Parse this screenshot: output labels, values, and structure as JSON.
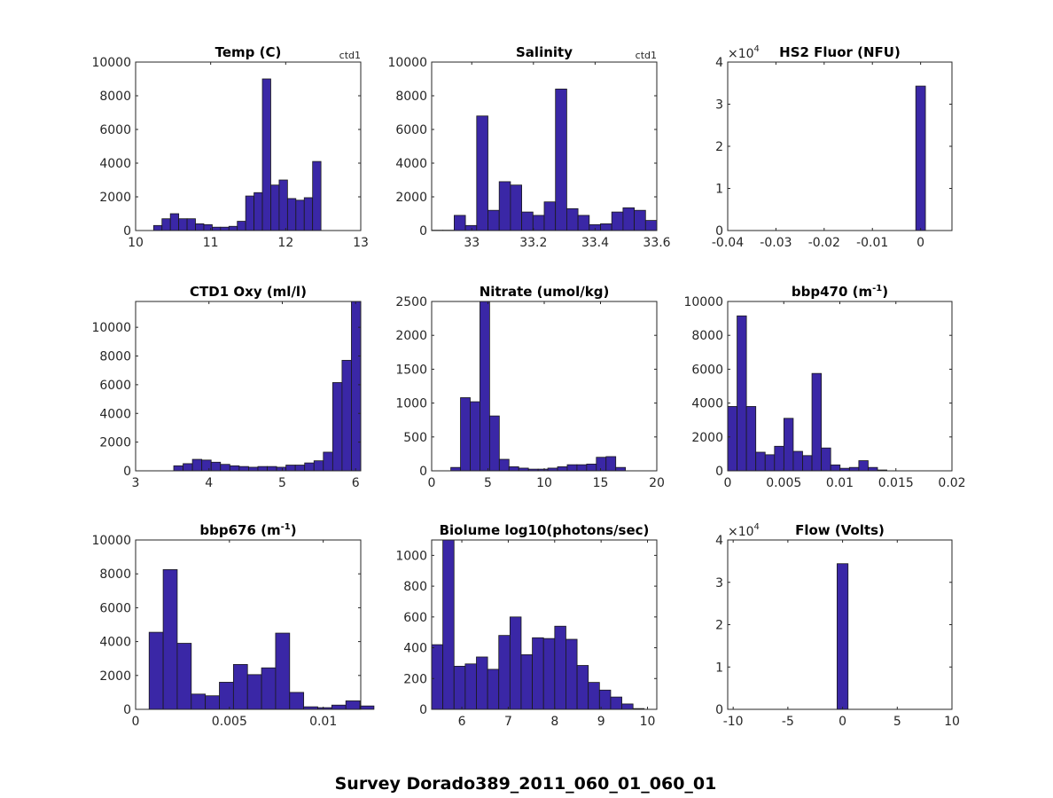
{
  "figure_title": "Survey Dorado389_2011_060_01_060_01",
  "bar_color": "#3A27A6",
  "chart_data": [
    {
      "type": "bar",
      "title": "Temp (C)",
      "title_sup": "",
      "corner_label": "ctd1",
      "exponent_label": "",
      "bin_start": 10.24,
      "bin_width": 0.1115,
      "values": [
        300,
        700,
        1000,
        700,
        700,
        400,
        350,
        200,
        200,
        250,
        550,
        2050,
        2250,
        9000,
        2700,
        3000,
        1900,
        1800,
        1950,
        4100
      ],
      "xlim": [
        10,
        13
      ],
      "ylim": [
        0,
        10000
      ],
      "xticks": [
        10,
        11,
        12,
        13
      ],
      "xtick_labels": [
        "10",
        "11",
        "12",
        "13"
      ],
      "yticks": [
        0,
        2000,
        4000,
        6000,
        8000,
        10000
      ],
      "ytick_labels": [
        "0",
        "2000",
        "4000",
        "6000",
        "8000",
        "10000"
      ]
    },
    {
      "type": "bar",
      "title": "Salinity",
      "title_sup": "",
      "corner_label": "ctd1",
      "exponent_label": "",
      "bin_start": 32.87,
      "bin_width": 0.0365,
      "values": [
        20,
        20,
        900,
        300,
        6800,
        1200,
        2900,
        2700,
        1100,
        900,
        1700,
        8400,
        1300,
        900,
        350,
        400,
        1100,
        1350,
        1200,
        600
      ],
      "xlim": [
        32.87,
        33.6
      ],
      "ylim": [
        0,
        10000
      ],
      "xticks": [
        33,
        33.2,
        33.4,
        33.6
      ],
      "xtick_labels": [
        "33",
        "33.2",
        "33.4",
        "33.6"
      ],
      "yticks": [
        0,
        2000,
        4000,
        6000,
        8000,
        10000
      ],
      "ytick_labels": [
        "0",
        "2000",
        "4000",
        "6000",
        "8000",
        "10000"
      ]
    },
    {
      "type": "bar",
      "title": "HS2 Fluor (NFU)",
      "title_sup": "",
      "corner_label": "",
      "exponent_label": "×10",
      "exponent_power": "4",
      "bin_start": -0.001,
      "bin_width": 0.002,
      "values": [
        34300
      ],
      "xlim": [
        -0.04,
        0.0065
      ],
      "ylim": [
        0,
        40000
      ],
      "xticks": [
        -0.04,
        -0.03,
        -0.02,
        -0.01,
        0
      ],
      "xtick_labels": [
        "-0.04",
        "-0.03",
        "-0.02",
        "-0.01",
        "0"
      ],
      "yticks": [
        0,
        10000,
        20000,
        30000,
        40000
      ],
      "ytick_labels": [
        "0",
        "1",
        "2",
        "3",
        "4"
      ]
    },
    {
      "type": "bar",
      "title": "CTD1 Oxy (ml/l)",
      "title_sup": "",
      "corner_label": "",
      "exponent_label": "",
      "bin_start": 3.52,
      "bin_width": 0.1275,
      "values": [
        350,
        500,
        800,
        750,
        600,
        450,
        350,
        300,
        250,
        300,
        300,
        250,
        400,
        400,
        550,
        700,
        1300,
        6150,
        7700,
        11800
      ],
      "xlim": [
        3,
        6.07
      ],
      "ylim": [
        0,
        11800
      ],
      "xticks": [
        3,
        4,
        5,
        6
      ],
      "xtick_labels": [
        "3",
        "4",
        "5",
        "6"
      ],
      "yticks": [
        0,
        2000,
        4000,
        6000,
        8000,
        10000
      ],
      "ytick_labels": [
        "0",
        "2000",
        "4000",
        "6000",
        "8000",
        "10000"
      ]
    },
    {
      "type": "bar",
      "title": "Nitrate (umol/kg)",
      "title_sup": "",
      "corner_label": "",
      "exponent_label": "",
      "bin_start": 1.7,
      "bin_width": 0.862,
      "values": [
        50,
        1080,
        1020,
        2500,
        810,
        170,
        60,
        40,
        25,
        25,
        40,
        60,
        90,
        90,
        100,
        200,
        210,
        50
      ],
      "xlim": [
        0,
        20
      ],
      "ylim": [
        0,
        2500
      ],
      "xticks": [
        0,
        5,
        10,
        15,
        20
      ],
      "xtick_labels": [
        "0",
        "5",
        "10",
        "15",
        "20"
      ],
      "yticks": [
        0,
        500,
        1000,
        1500,
        2000,
        2500
      ],
      "ytick_labels": [
        "0",
        "500",
        "1000",
        "1500",
        "2000",
        "2500"
      ]
    },
    {
      "type": "bar",
      "title": "bbp470 (m",
      "title_sup": "-1",
      "title_tail": ")",
      "corner_label": "",
      "exponent_label": "",
      "bin_start": 0,
      "bin_width": 0.000835,
      "values": [
        3800,
        9150,
        3800,
        1100,
        950,
        1450,
        3100,
        1150,
        900,
        5750,
        1350,
        350,
        150,
        200,
        600,
        200,
        50
      ],
      "xlim": [
        0,
        0.02
      ],
      "ylim": [
        0,
        10000
      ],
      "xticks": [
        0,
        0.005,
        0.01,
        0.015,
        0.02
      ],
      "xtick_labels": [
        "0",
        "0.005",
        "0.01",
        "0.015",
        "0.02"
      ],
      "yticks": [
        0,
        2000,
        4000,
        6000,
        8000,
        10000
      ],
      "ytick_labels": [
        "0",
        "2000",
        "4000",
        "6000",
        "8000",
        "10000"
      ]
    },
    {
      "type": "bar",
      "title": "bbp676 (m",
      "title_sup": "-1",
      "title_tail": ")",
      "corner_label": "",
      "exponent_label": "",
      "bin_start": 0.00072,
      "bin_width": 0.000749,
      "values": [
        4550,
        8250,
        3900,
        900,
        800,
        1600,
        2650,
        2050,
        2450,
        4500,
        1000,
        150,
        100,
        250,
        500,
        200
      ],
      "xlim": [
        0,
        0.012
      ],
      "ylim": [
        0,
        10000
      ],
      "xticks": [
        0,
        0.005,
        0.01
      ],
      "xtick_labels": [
        "0",
        "0.005",
        "0.01"
      ],
      "yticks": [
        0,
        2000,
        4000,
        6000,
        8000,
        10000
      ],
      "ytick_labels": [
        "0",
        "2000",
        "4000",
        "6000",
        "8000",
        "10000"
      ]
    },
    {
      "type": "bar",
      "title": "Biolume log10(photons/sec)",
      "title_sup": "",
      "corner_label": "",
      "exponent_label": "",
      "bin_start": 5.35,
      "bin_width": 0.241,
      "values": [
        420,
        1100,
        280,
        295,
        340,
        260,
        480,
        600,
        355,
        465,
        460,
        540,
        455,
        285,
        175,
        125,
        80,
        35,
        5
      ],
      "xlim": [
        5.35,
        10.2
      ],
      "ylim": [
        0,
        1100
      ],
      "xticks": [
        6,
        7,
        8,
        9,
        10
      ],
      "xtick_labels": [
        "6",
        "7",
        "8",
        "9",
        "10"
      ],
      "yticks": [
        0,
        200,
        400,
        600,
        800,
        1000
      ],
      "ytick_labels": [
        "0",
        "200",
        "400",
        "600",
        "800",
        "1000"
      ]
    },
    {
      "type": "bar",
      "title": "Flow (Volts)",
      "title_sup": "",
      "corner_label": "",
      "exponent_label": "×10",
      "exponent_power": "4",
      "bin_start": -0.5,
      "bin_width": 1.0,
      "values": [
        34400
      ],
      "xlim": [
        -10.5,
        10
      ],
      "ylim": [
        0,
        40000
      ],
      "xticks": [
        -10,
        -5,
        0,
        5,
        10
      ],
      "xtick_labels": [
        "-10",
        "-5",
        "0",
        "5",
        "10"
      ],
      "yticks": [
        0,
        10000,
        20000,
        30000,
        40000
      ],
      "ytick_labels": [
        "0",
        "1",
        "2",
        "3",
        "4"
      ]
    }
  ]
}
